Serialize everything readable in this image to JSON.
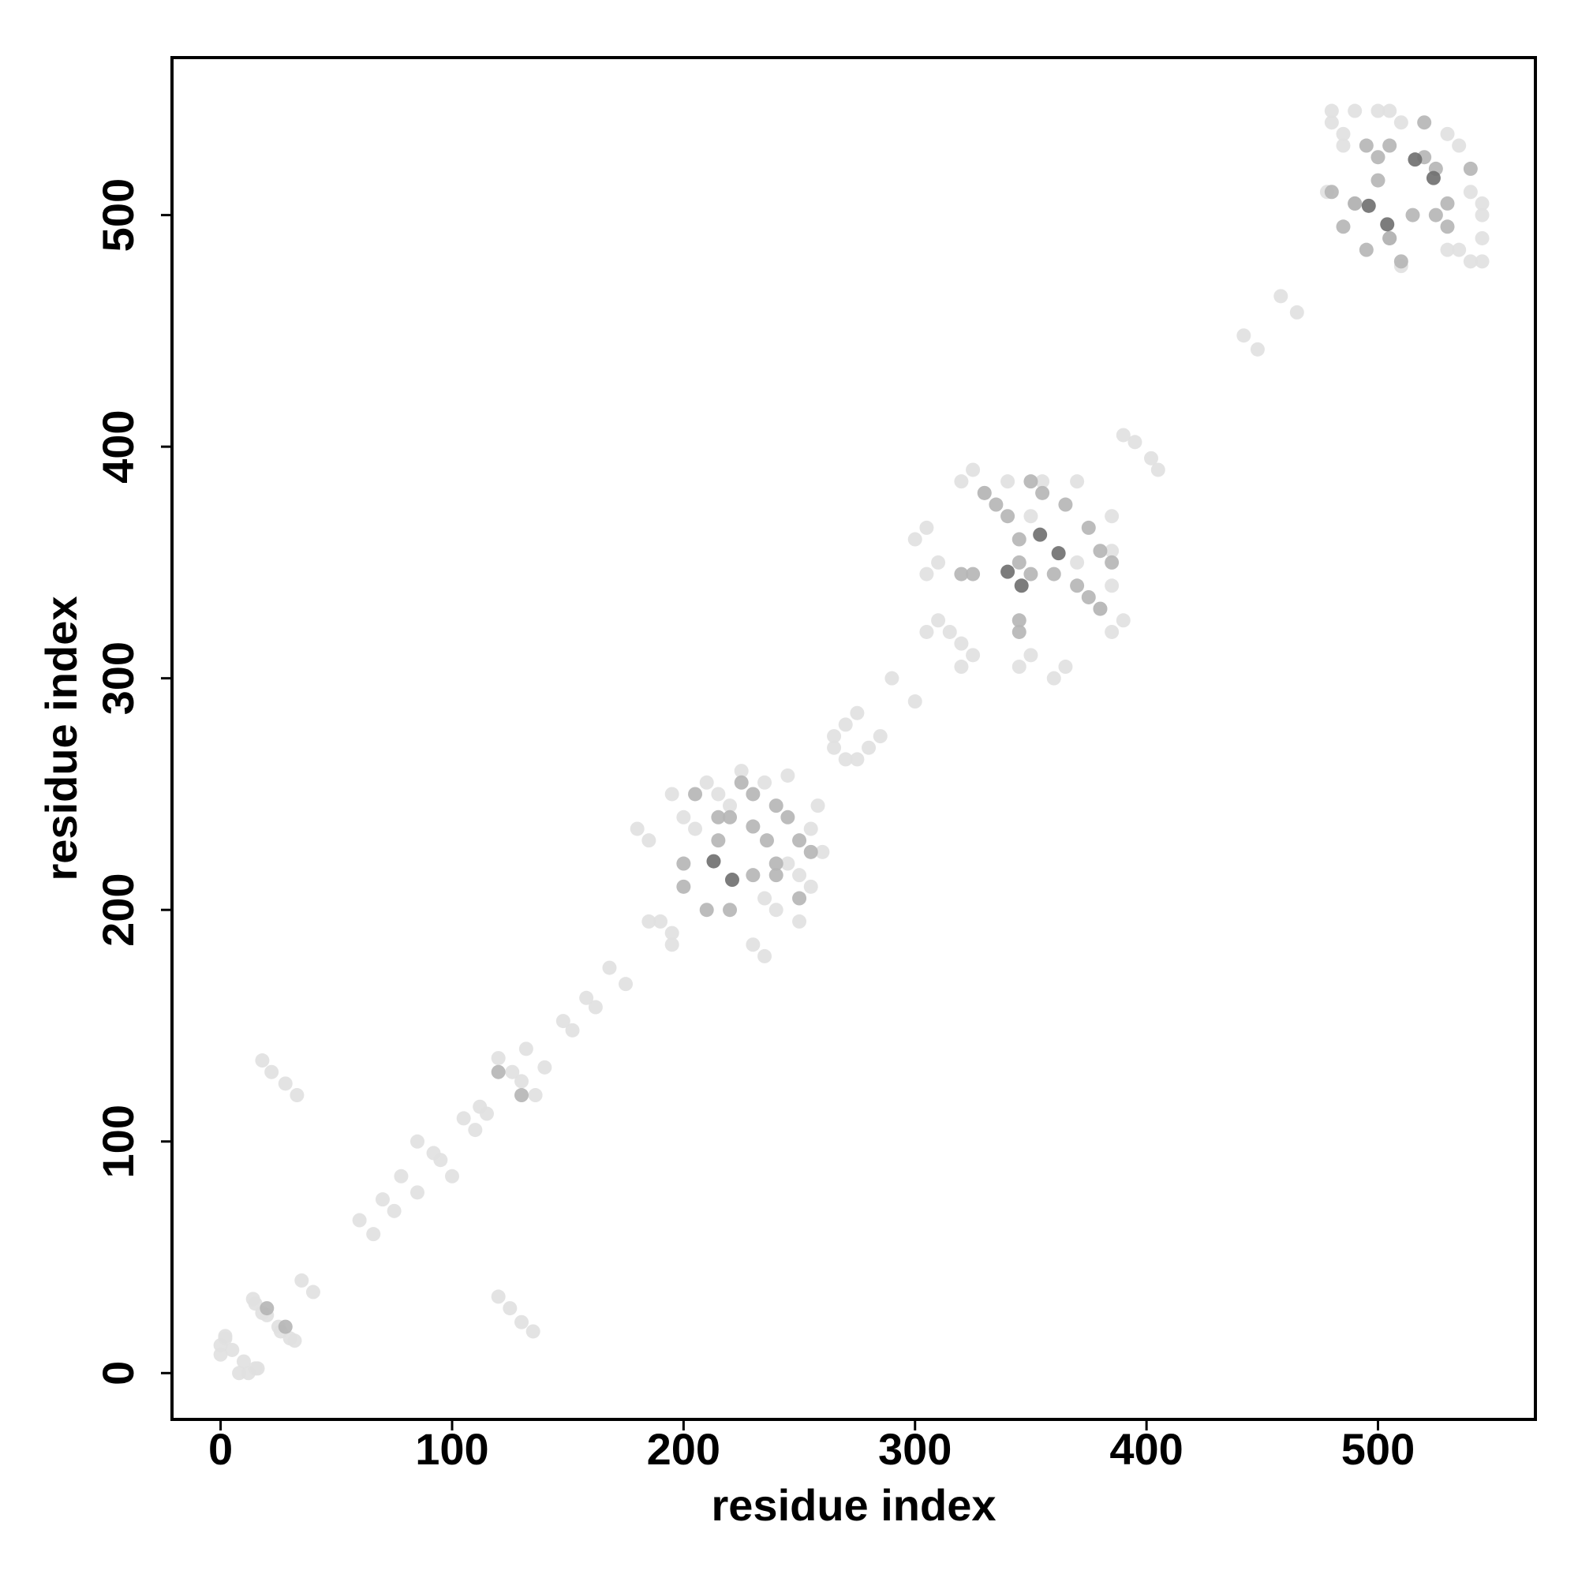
{
  "chart_data": {
    "type": "scatter",
    "xlabel": "residue index",
    "ylabel": "residue index",
    "xlim": [
      -21,
      568
    ],
    "ylim": [
      -20,
      568
    ],
    "xticks": [
      0,
      100,
      200,
      300,
      400,
      500
    ],
    "yticks": [
      0,
      100,
      200,
      300,
      400,
      500
    ],
    "grid": false,
    "series": [
      {
        "color": "#e0e0e0",
        "x": [
          2,
          5,
          0,
          12,
          16,
          15,
          20,
          26,
          32,
          35,
          18,
          22,
          28,
          33,
          60,
          70,
          78,
          85,
          92,
          105,
          112,
          120,
          126,
          132,
          148,
          158,
          168,
          190,
          195,
          205,
          210,
          215,
          220,
          225,
          230,
          235,
          240,
          250,
          255,
          245,
          265,
          270,
          275,
          280,
          290,
          305,
          310,
          315,
          320,
          325,
          340,
          350,
          355,
          360,
          370,
          380,
          385,
          390,
          345,
          395,
          405,
          442,
          458,
          480,
          485,
          490,
          500,
          510,
          530,
          545,
          545,
          530,
          478,
          15,
          10,
          8,
          0,
          2,
          30,
          25,
          18,
          14,
          40,
          135,
          130,
          125,
          120,
          66,
          75,
          85,
          100,
          95,
          110,
          115,
          136,
          130,
          140,
          152,
          162,
          175,
          195,
          185,
          235,
          255,
          250,
          245,
          260,
          185,
          180,
          200,
          195,
          235,
          258,
          275,
          265,
          285,
          270,
          300,
          365,
          350,
          320,
          305,
          310,
          385,
          370,
          385,
          300,
          385,
          330,
          320,
          325,
          305,
          402,
          390,
          448,
          465,
          540,
          535,
          545,
          545,
          540,
          535,
          505,
          480,
          485,
          510
        ],
        "values": [
          15,
          10,
          8,
          0,
          2,
          30,
          25,
          18,
          14,
          40,
          135,
          130,
          125,
          120,
          66,
          75,
          85,
          100,
          95,
          110,
          115,
          136,
          130,
          140,
          152,
          162,
          175,
          195,
          185,
          235,
          255,
          250,
          245,
          260,
          185,
          180,
          200,
          195,
          235,
          258,
          275,
          265,
          285,
          270,
          300,
          365,
          350,
          320,
          305,
          310,
          385,
          370,
          385,
          300,
          385,
          330,
          320,
          325,
          305,
          402,
          390,
          448,
          465,
          540,
          535,
          545,
          545,
          540,
          535,
          505,
          480,
          485,
          510,
          2,
          5,
          0,
          12,
          16,
          15,
          20,
          26,
          32,
          35,
          18,
          22,
          28,
          33,
          60,
          70,
          78,
          85,
          92,
          105,
          112,
          120,
          126,
          132,
          148,
          158,
          168,
          190,
          195,
          205,
          210,
          215,
          220,
          225,
          230,
          235,
          240,
          250,
          255,
          245,
          265,
          270,
          275,
          280,
          290,
          305,
          310,
          315,
          320,
          325,
          340,
          350,
          355,
          360,
          370,
          380,
          385,
          390,
          345,
          395,
          405,
          442,
          458,
          480,
          485,
          490,
          500,
          510,
          530,
          545,
          545,
          530,
          478
        ]
      },
      {
        "color": "#b5b5b5",
        "x": [
          200,
          205,
          215,
          225,
          230,
          240,
          245,
          250,
          210,
          325,
          330,
          335,
          345,
          350,
          360,
          370,
          375,
          380,
          320,
          490,
          495,
          500,
          505,
          515,
          520,
          525,
          530,
          510,
          495,
          20,
          120,
          230,
          220,
          250,
          240,
          255,
          215,
          220,
          240,
          230,
          200,
          345,
          380,
          375,
          350,
          385,
          345,
          340,
          365,
          355,
          345,
          505,
          530,
          525,
          490,
          500,
          540,
          520,
          505,
          480,
          485,
          28,
          130,
          236
        ],
        "values": [
          220,
          250,
          240,
          255,
          215,
          220,
          240,
          230,
          200,
          345,
          380,
          375,
          350,
          385,
          345,
          340,
          365,
          355,
          345,
          505,
          530,
          525,
          490,
          500,
          540,
          520,
          505,
          480,
          485,
          28,
          130,
          236,
          200,
          205,
          215,
          225,
          230,
          240,
          245,
          250,
          210,
          325,
          330,
          335,
          345,
          350,
          360,
          370,
          375,
          380,
          320,
          490,
          495,
          500,
          505,
          515,
          520,
          525,
          530,
          510,
          495,
          20,
          120,
          230
        ]
      },
      {
        "color": "#6e6e6e",
        "x": [
          213,
          340,
          354,
          496,
          516,
          221,
          346,
          362,
          504,
          524
        ],
        "values": [
          221,
          346,
          362,
          504,
          524,
          213,
          340,
          354,
          496,
          516
        ]
      }
    ]
  }
}
